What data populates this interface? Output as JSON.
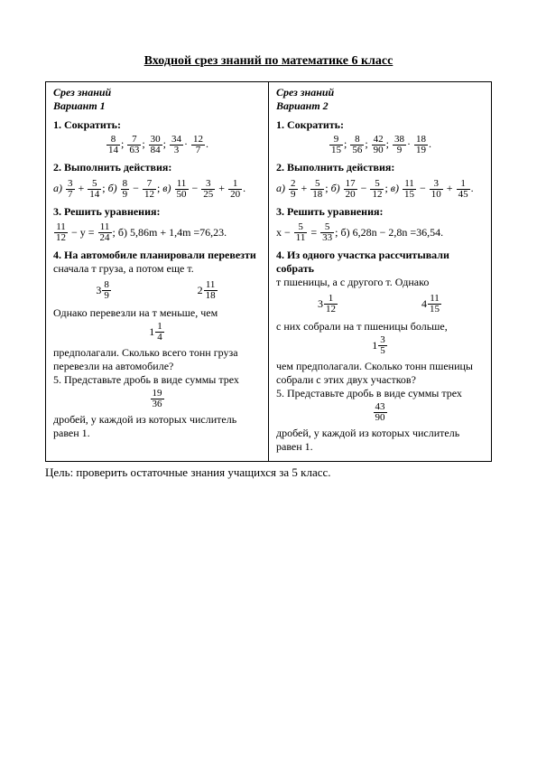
{
  "title": "Входной срез знаний по математике 6 класс",
  "footer": "Цель: проверить остаточные знания учащихся за 5 класс.",
  "col1": {
    "heading": "Срез знаний",
    "variant": "Вариант 1",
    "s1_title": "1. Сократить:",
    "s1_fracs": [
      {
        "n": "8",
        "d": "14"
      },
      {
        "n": "7",
        "d": "63"
      },
      {
        "n": "30",
        "d": "84"
      },
      {
        "n": "34",
        "d": "3"
      },
      {
        "n": "12",
        "d": "7"
      }
    ],
    "s1_sep": [
      ";",
      ";",
      ";",
      "·",
      "."
    ],
    "s2_title": "2. Выполнить действия:",
    "s2_a": {
      "lbl": "а)",
      "f1": {
        "n": "3",
        "d": "7"
      },
      "op": "+",
      "f2": {
        "n": "5",
        "d": "14"
      }
    },
    "s2_b": {
      "lbl": "б)",
      "f1": {
        "n": "8",
        "d": "9"
      },
      "op": "−",
      "f2": {
        "n": "7",
        "d": "12"
      }
    },
    "s2_c": {
      "lbl": "в)",
      "f1": {
        "n": "11",
        "d": "50"
      },
      "op": "−",
      "f2": {
        "n": "3",
        "d": "25"
      }
    },
    "s2_d": {
      "lbl": "+",
      "f": {
        "n": "1",
        "d": "20"
      }
    },
    "s3_title": "3. Решить уравнения:",
    "s3_a": {
      "f1": {
        "n": "11",
        "d": "12"
      },
      "t1": "− y =",
      "f2": {
        "n": "11",
        "d": "24"
      }
    },
    "s3_b": "; б) 5,86m + 1,4m =76,23.",
    "s4_title": "4. На автомобиле планировали перевезти",
    "s4_t1": "сначала        т груза, а потом еще            т.",
    "s4_m1": {
      "w": "3",
      "n": "8",
      "d": "9"
    },
    "s4_m2": {
      "w": "2",
      "n": "11",
      "d": "18"
    },
    "s4_t2": "Однако перевезли на      т меньше, чем",
    "s4_m3": {
      "w": "1",
      "n": "1",
      "d": "4"
    },
    "s4_t3a": "предполагали. Сколько всего тонн груза",
    "s4_t3b": "перевезли на автомобиле?",
    "s5_title": "5. Представьте дробь       в виде суммы трех",
    "s5_f": {
      "n": "19",
      "d": "36"
    },
    "s5_t2a": "дробей, у каждой из которых числитель",
    "s5_t2b": "равен 1."
  },
  "col2": {
    "heading": "Срез знаний",
    "variant": "Вариант 2",
    "s1_title": "1. Сократить:",
    "s1_fracs": [
      {
        "n": "9",
        "d": "15"
      },
      {
        "n": "8",
        "d": "56"
      },
      {
        "n": "42",
        "d": "90"
      },
      {
        "n": "38",
        "d": "9"
      },
      {
        "n": "18",
        "d": "19"
      }
    ],
    "s1_sep": [
      ";",
      ";",
      ";",
      "·",
      "."
    ],
    "s2_title": "2. Выполнить действия:",
    "s2_a": {
      "lbl": "а)",
      "f1": {
        "n": "2",
        "d": "9"
      },
      "op": "+",
      "f2": {
        "n": "5",
        "d": "18"
      }
    },
    "s2_b": {
      "lbl": "б)",
      "f1": {
        "n": "17",
        "d": "20"
      },
      "op": "−",
      "f2": {
        "n": "5",
        "d": "12"
      }
    },
    "s2_c": {
      "lbl": "в)",
      "f1": {
        "n": "11",
        "d": "15"
      },
      "op": "−",
      "f2": {
        "n": "3",
        "d": "10"
      }
    },
    "s2_d": {
      "lbl": "+",
      "f": {
        "n": "1",
        "d": "45"
      }
    },
    "s3_title": "3. Решить уравнения:",
    "s3_a": {
      "t0": "x −",
      "f1": {
        "n": "5",
        "d": "11"
      },
      "t1": "=",
      "f2": {
        "n": "5",
        "d": "33"
      }
    },
    "s3_b": "; б) 6,28n − 2,8n =36,54.",
    "s4_title": "4. Из одного участка рассчитывали собрать",
    "s4_t1": "      т пшеницы, а с другого            т. Однако",
    "s4_m1": {
      "w": "3",
      "n": "1",
      "d": "12"
    },
    "s4_m2": {
      "w": "4",
      "n": "11",
      "d": "15"
    },
    "s4_t2": "с них собрали на      т пшеницы больше,",
    "s4_m3": {
      "w": "1",
      "n": "3",
      "d": "5"
    },
    "s4_t3a": "чем предполагали. Сколько тонн пшеницы",
    "s4_t3b": "собрали с этих двух участков?",
    "s5_title": "5. Представьте дробь       в виде суммы трех",
    "s5_f": {
      "n": "43",
      "d": "90"
    },
    "s5_t2a": "дробей, у каждой из которых числитель",
    "s5_t2b": "равен 1."
  }
}
